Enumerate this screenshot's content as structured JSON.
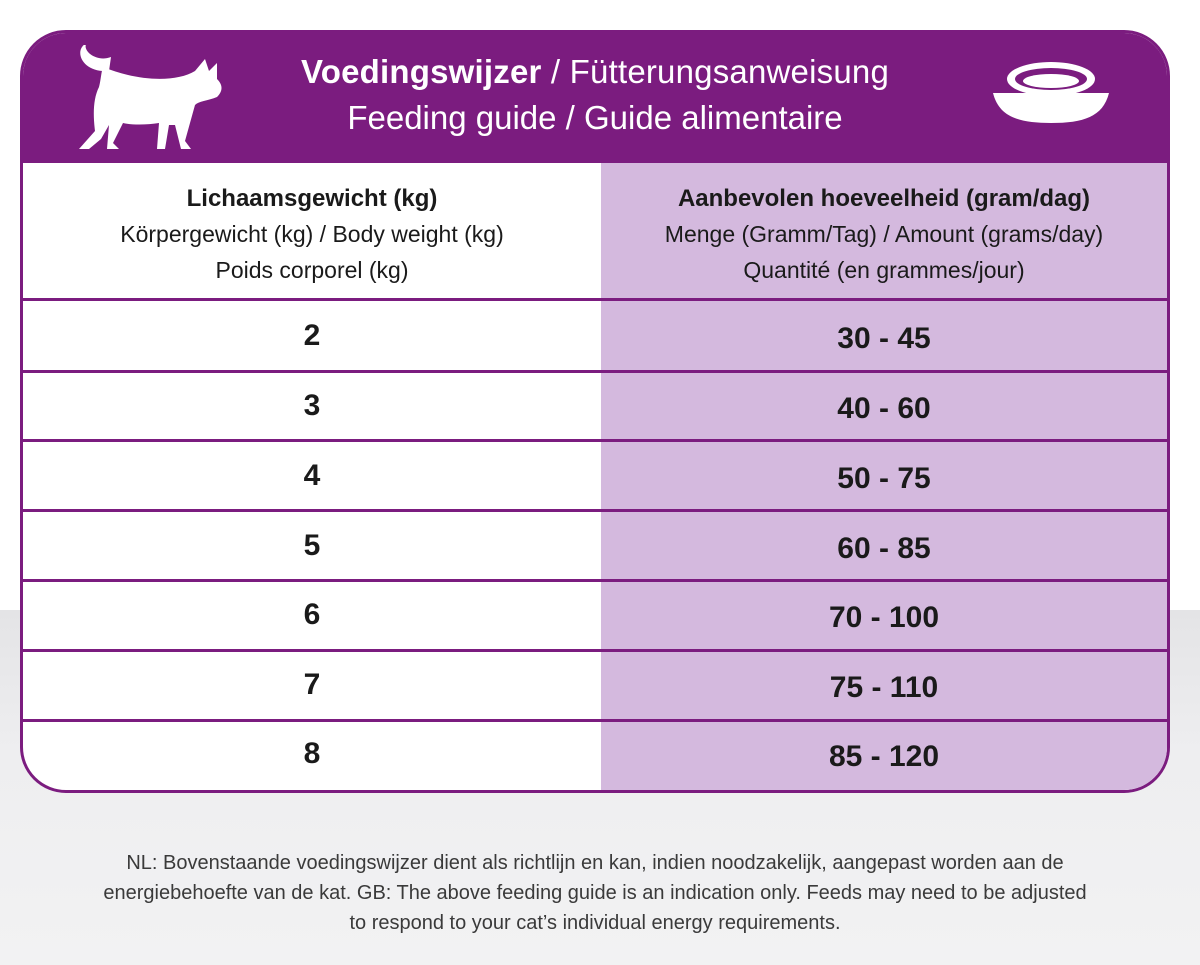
{
  "header": {
    "title_nl": "Voedingswijzer",
    "title_sep_1": " / ",
    "title_de": "Fütterungsanweisung",
    "title_line2": "Feeding guide / Guide alimentaire",
    "left_icon": "cat-icon",
    "right_icon": "bowl-icon"
  },
  "columns": {
    "weight": {
      "line1": "Lichaamsgewicht (kg)",
      "line2": "Körpergewicht (kg) / Body weight (kg)",
      "line3": "Poids corporel (kg)"
    },
    "amount": {
      "line1": "Aanbevolen hoeveelheid (gram/dag)",
      "line2": "Menge (Gramm/Tag) / Amount (grams/day)",
      "line3": "Quantité (en grammes/jour)"
    }
  },
  "rows": [
    {
      "weight": "2",
      "amount": "30 - 45"
    },
    {
      "weight": "3",
      "amount": "40 - 60"
    },
    {
      "weight": "4",
      "amount": "50 - 75"
    },
    {
      "weight": "5",
      "amount": "60 - 85"
    },
    {
      "weight": "6",
      "amount": "70 - 100"
    },
    {
      "weight": "7",
      "amount": "75 - 110"
    },
    {
      "weight": "8",
      "amount": "85 - 120"
    }
  ],
  "footnote": {
    "line1": "NL: Bovenstaande voedingswijzer dient als richtlijn en kan, indien noodzakelijk, aangepast worden aan de",
    "line2": "energiebehoefte van de kat. GB: The above feeding guide is an indication only. Feeds may need to be adjusted",
    "line3": "to respond to your cat’s individual energy requirements."
  },
  "colors": {
    "brand_purple": "#7b1c7f",
    "column_lilac": "#d4b9de",
    "text_dark": "#1a1a1a"
  }
}
